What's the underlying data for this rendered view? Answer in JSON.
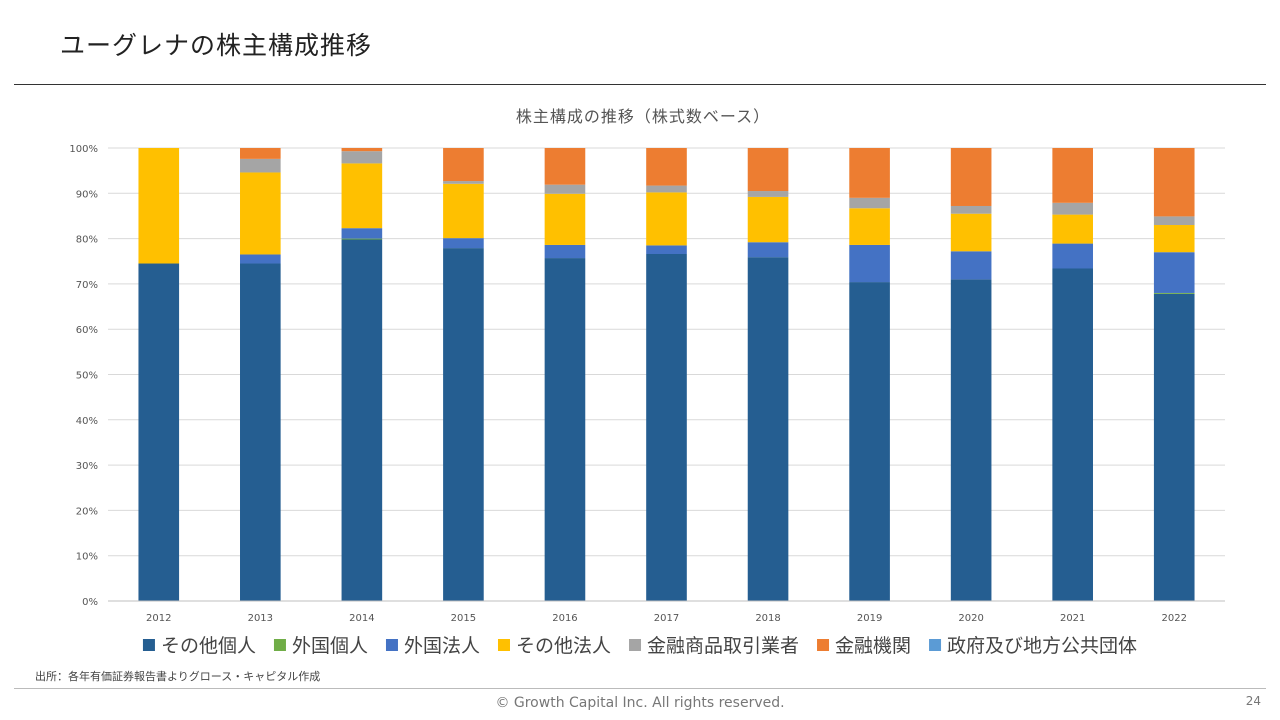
{
  "slide": {
    "title": "ユーグレナの株主構成推移",
    "source": "出所：各年有価証券報告書よりグロース・キャピタル作成",
    "copyright": "© Growth Capital Inc. All rights reserved.",
    "page_number": "24"
  },
  "chart_data": {
    "type": "bar",
    "stacked": true,
    "title": "株主構成の推移（株式数ベース）",
    "xlabel": "",
    "ylabel": "",
    "ylim": [
      0,
      100
    ],
    "yticks": [
      "0%",
      "10%",
      "20%",
      "30%",
      "40%",
      "50%",
      "60%",
      "70%",
      "80%",
      "90%",
      "100%"
    ],
    "grid": true,
    "legend_position": "bottom",
    "categories": [
      "2012",
      "2013",
      "2014",
      "2015",
      "2016",
      "2017",
      "2018",
      "2019",
      "2020",
      "2021",
      "2022"
    ],
    "series": [
      {
        "name": "その他個人",
        "color": "#255e91",
        "values": [
          74.5,
          74.5,
          79.8,
          77.9,
          75.7,
          76.6,
          75.9,
          70.4,
          71.0,
          73.4,
          67.8
        ]
      },
      {
        "name": "外国個人",
        "color": "#70ad47",
        "values": [
          0,
          0,
          0.2,
          0,
          0,
          0,
          0,
          0,
          0,
          0,
          0.2
        ]
      },
      {
        "name": "外国法人",
        "color": "#4472c4",
        "values": [
          0,
          2.0,
          2.3,
          2.2,
          2.9,
          1.9,
          3.3,
          8.2,
          6.2,
          5.5,
          9.0
        ]
      },
      {
        "name": "その他法人",
        "color": "#ffc000",
        "values": [
          25.5,
          18.1,
          14.3,
          12.0,
          11.3,
          11.7,
          10.0,
          8.1,
          8.3,
          6.4,
          6.0
        ]
      },
      {
        "name": "金融商品取引業者",
        "color": "#a5a5a5",
        "values": [
          0,
          3.0,
          2.7,
          0.6,
          2.0,
          1.5,
          1.3,
          2.3,
          1.7,
          2.6,
          1.9
        ]
      },
      {
        "name": "金融機関",
        "color": "#ed7d31",
        "values": [
          0,
          2.4,
          0.7,
          7.3,
          8.1,
          8.3,
          9.5,
          11.0,
          12.8,
          12.1,
          15.1
        ]
      },
      {
        "name": "政府及び地方公共団体",
        "color": "#5b9bd5",
        "values": [
          0,
          0,
          0,
          0,
          0,
          0,
          0,
          0,
          0,
          0,
          0
        ]
      }
    ]
  }
}
